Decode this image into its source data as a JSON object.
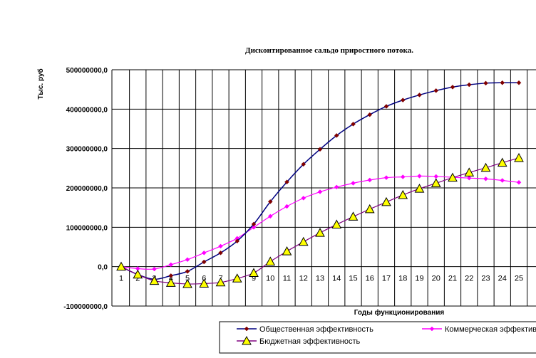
{
  "chart_data": {
    "type": "line",
    "title": "Дисконтированное сальдо прироcтного потока.",
    "xlabel": "Годы функционирования",
    "ylabel": "Тыс. руб",
    "ylim": [
      -100000000,
      500000000
    ],
    "ytick_labels": [
      "500000000,0",
      "400000000,0",
      "300000000,0",
      "200000000,0",
      "100000000,0",
      "0,0",
      "-100000000,0"
    ],
    "ytick_values": [
      500000000,
      400000000,
      300000000,
      200000000,
      100000000,
      0,
      -100000000
    ],
    "categories": [
      "1",
      "2",
      "3",
      "4",
      "5",
      "6",
      "7",
      "8",
      "9",
      "10",
      "11",
      "12",
      "13",
      "14",
      "15",
      "16",
      "17",
      "18",
      "19",
      "20",
      "21",
      "22",
      "23",
      "24",
      "25"
    ],
    "grid": true,
    "legend_position": "bottom",
    "series": [
      {
        "name": "Общественная эффективность",
        "color": "#000080",
        "marker": "diamond",
        "marker_color": "#800000",
        "values": [
          0,
          -20000000,
          -32000000,
          -23000000,
          -12000000,
          12000000,
          35000000,
          65000000,
          108000000,
          165000000,
          215000000,
          260000000,
          298000000,
          333000000,
          362000000,
          386000000,
          407000000,
          423000000,
          436000000,
          447000000,
          456000000,
          462000000,
          466000000,
          467000000,
          467000000
        ]
      },
      {
        "name": "Коммерческая эффективность",
        "color": "#ff00ff",
        "marker": "diamond",
        "marker_color": "#ff00ff",
        "values": [
          0,
          -5000000,
          -6000000,
          5000000,
          18000000,
          35000000,
          52000000,
          72000000,
          100000000,
          128000000,
          153000000,
          174000000,
          190000000,
          202000000,
          212000000,
          220000000,
          226000000,
          228000000,
          230000000,
          229000000,
          227000000,
          225000000,
          223000000,
          219000000,
          214000000
        ]
      },
      {
        "name": "Бюджетная эффективность",
        "color": "#800080",
        "marker": "triangle",
        "marker_color": "#ffff00",
        "values": [
          0,
          -20000000,
          -36000000,
          -41000000,
          -44000000,
          -43000000,
          -40000000,
          -30000000,
          -16000000,
          13000000,
          39000000,
          63000000,
          86000000,
          107000000,
          127000000,
          146000000,
          164000000,
          182000000,
          198000000,
          212000000,
          226000000,
          239000000,
          251000000,
          264000000,
          276000000
        ]
      }
    ]
  }
}
